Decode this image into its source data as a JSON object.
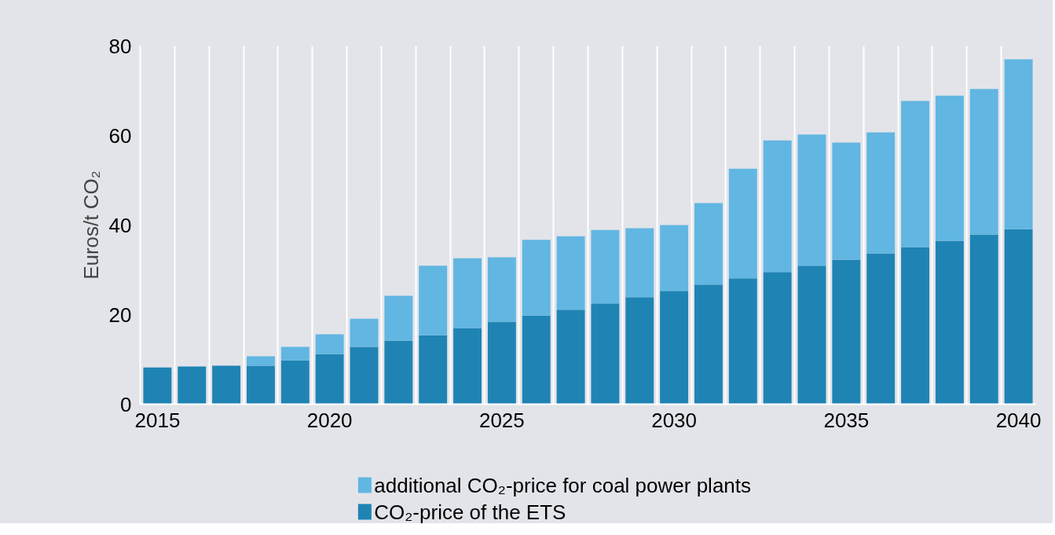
{
  "chart_data": {
    "type": "bar",
    "stacked": true,
    "ylabel": "Euros/t CO₂",
    "categories": [
      "2015",
      null,
      null,
      null,
      null,
      "2020",
      null,
      null,
      null,
      null,
      "2025",
      null,
      null,
      null,
      null,
      "2030",
      null,
      null,
      null,
      null,
      "2035",
      null,
      null,
      null,
      null,
      "2040"
    ],
    "series": [
      {
        "name": "CO₂-price of the ETS",
        "color": "#1f84b4",
        "values": [
          8.2,
          8.4,
          8.6,
          8.6,
          9.8,
          11.2,
          12.8,
          14.2,
          15.4,
          17.0,
          18.4,
          19.8,
          21.1,
          22.5,
          23.9,
          25.3,
          26.7,
          28.1,
          29.5,
          30.9,
          32.3,
          33.7,
          35.1,
          36.5,
          37.9,
          39.1
        ]
      },
      {
        "name": "additional CO₂-price for coal power plants",
        "color": "#62b6e2",
        "values": [
          null,
          null,
          null,
          2.1,
          3.0,
          4.4,
          6.3,
          10.0,
          15.5,
          15.6,
          14.4,
          16.9,
          16.4,
          16.4,
          15.4,
          14.7,
          18.2,
          24.5,
          29.4,
          29.3,
          26.1,
          27.0,
          32.6,
          32.4,
          32.5,
          37.9
        ]
      }
    ],
    "ylim": [
      0,
      80
    ],
    "yticks": [
      0,
      20,
      40,
      60,
      80
    ],
    "grid": "x",
    "legend": "bottom"
  }
}
